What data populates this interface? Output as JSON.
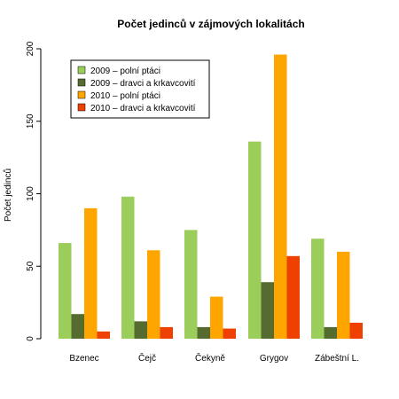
{
  "chart_data": {
    "type": "bar",
    "title": "Počet jedinců v zájmových lokalitách",
    "xlabel": "",
    "ylabel": "Počet jedinců",
    "categories": [
      "Bzenec",
      "Čejč",
      "Čekyně",
      "Grygov",
      "Zábeštní L."
    ],
    "ylim": [
      0,
      200
    ],
    "yticks": [
      0,
      50,
      100,
      150,
      200
    ],
    "grid": false,
    "legend_position": "top-left",
    "series": [
      {
        "name": "2009 – polní ptáci",
        "color": "#9ACD5A",
        "values": [
          66,
          98,
          75,
          136,
          69
        ]
      },
      {
        "name": "2009 – dravci a krkavcovití",
        "color": "#556B2F",
        "values": [
          17,
          12,
          8,
          39,
          8
        ]
      },
      {
        "name": "2010 – polní ptáci",
        "color": "#FFA500",
        "values": [
          90,
          61,
          29,
          196,
          60
        ]
      },
      {
        "name": "2010 – dravci a krkavcovití",
        "color": "#EE4000",
        "values": [
          5,
          8,
          7,
          57,
          11
        ]
      }
    ]
  }
}
